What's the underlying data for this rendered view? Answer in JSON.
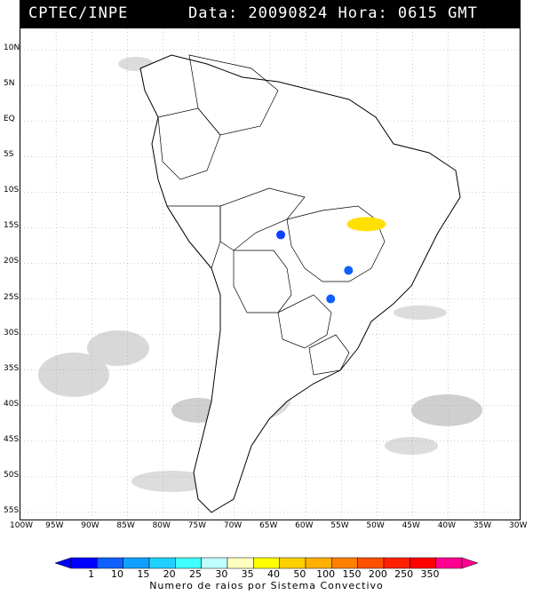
{
  "header": {
    "source": "CPTEC/INPE",
    "datetime": "Data: 20090824  Hora: 0615 GMT"
  },
  "map": {
    "lat_labels": [
      "10N",
      "5N",
      "EQ",
      "5S",
      "10S",
      "15S",
      "20S",
      "25S",
      "30S",
      "35S",
      "40S",
      "45S",
      "50S",
      "55S"
    ],
    "lat_values": [
      10,
      5,
      0,
      -5,
      -10,
      -15,
      -20,
      -25,
      -30,
      -35,
      -40,
      -45,
      -50,
      -55
    ],
    "lon_labels": [
      "100W",
      "95W",
      "90W",
      "85W",
      "80W",
      "75W",
      "70W",
      "65W",
      "60W",
      "55W",
      "50W",
      "45W",
      "40W",
      "35W",
      "30W"
    ],
    "lon_values": [
      -100,
      -95,
      -90,
      -85,
      -80,
      -75,
      -70,
      -65,
      -60,
      -55,
      -50,
      -45,
      -40,
      -35,
      -30
    ],
    "lon_range": [
      -100,
      -30
    ],
    "lat_range": [
      -56,
      13
    ],
    "grid": true
  },
  "colorbar": {
    "title": "Numero de raios por Sistema Convectivo",
    "labels": [
      "1",
      "10",
      "15",
      "20",
      "25",
      "30",
      "35",
      "40",
      "50",
      "100",
      "150",
      "200",
      "250",
      "350"
    ],
    "colors": [
      "#0000ff",
      "#1060ff",
      "#10a0ff",
      "#20d0ff",
      "#40ffff",
      "#c0ffff",
      "#ffffc0",
      "#ffff00",
      "#ffd000",
      "#ffb000",
      "#ff8000",
      "#ff5000",
      "#ff2000",
      "#ff0000",
      "#ff0090"
    ]
  },
  "systems": [
    {
      "name": "yellow-system",
      "color": "#ffe000",
      "lon": -51.5,
      "lat": -14.5
    },
    {
      "name": "blue-system-1",
      "color": "#1040ff",
      "lon": -63.5,
      "lat": -16.0
    },
    {
      "name": "blue-system-2",
      "color": "#1060ff",
      "lon": -54.0,
      "lat": -21.0
    },
    {
      "name": "blue-system-3",
      "color": "#1060ff",
      "lon": -56.5,
      "lat": -25.0
    }
  ]
}
